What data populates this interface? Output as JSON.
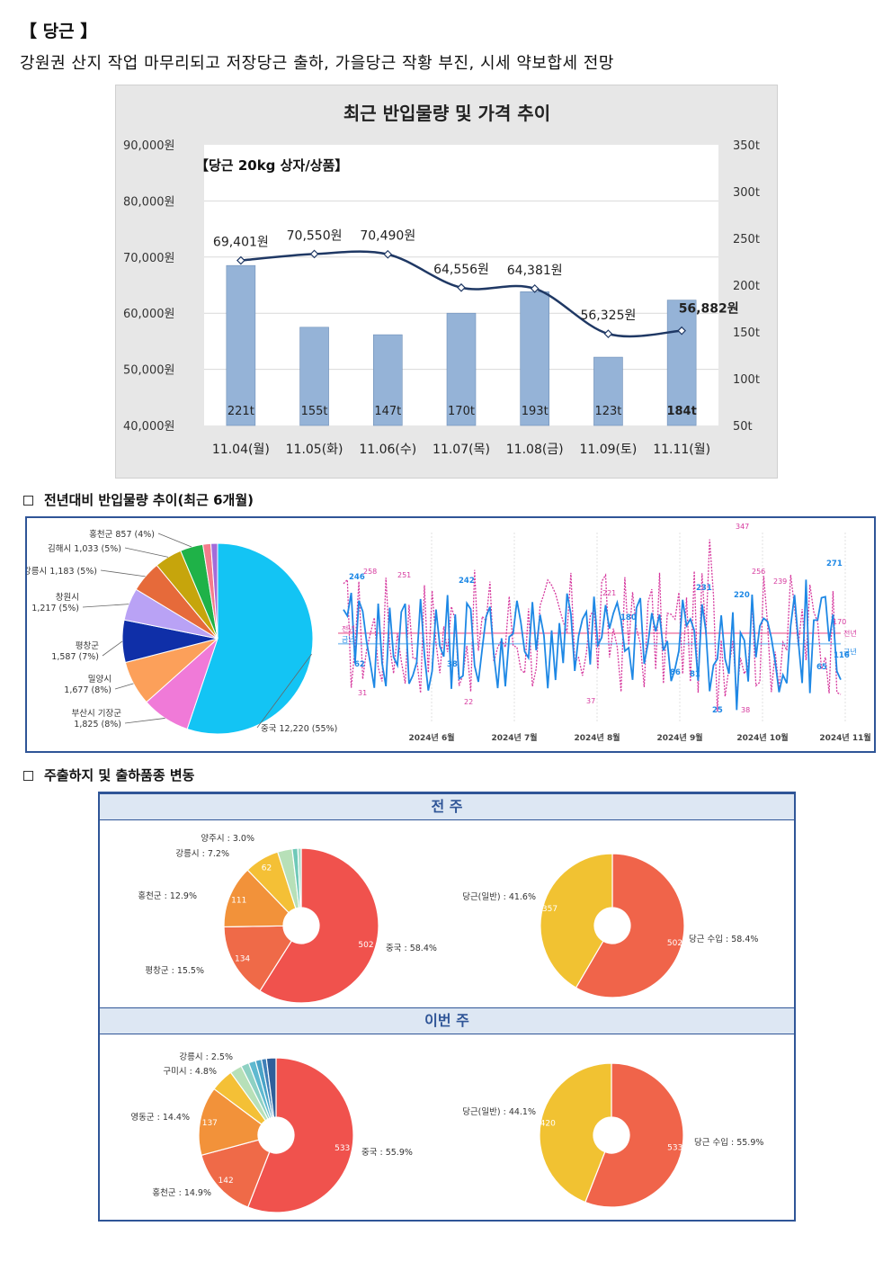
{
  "header": {
    "title": "【 당근 】",
    "summary": "강원권 산지 작업 마무리되고 저장당근 출하, 가을당근 작황 부진, 시세 약보합세 전망"
  },
  "sections": {
    "yoy": "전년대비 반입물량 추이(최근 6개월)",
    "origin": "주출하지 및 출하품종 변동"
  },
  "chart_data": [
    {
      "type": "bar+line",
      "title": "최근 반입물량 및 가격 추이",
      "subtitle": "【당근 20kg 상자/상품】",
      "categories": [
        "11.04(월)",
        "11.05(화)",
        "11.06(수)",
        "11.07(목)",
        "11.08(금)",
        "11.09(토)",
        "11.11(월)"
      ],
      "series": [
        {
          "type": "bar",
          "axis": "right",
          "values": [
            221,
            155,
            147,
            170,
            193,
            123,
            184
          ],
          "labels": [
            "221t",
            "155t",
            "147t",
            "170t",
            "193t",
            "123t",
            "184t"
          ]
        },
        {
          "type": "line",
          "axis": "left",
          "values": [
            69401,
            70550,
            70490,
            64556,
            64381,
            56325,
            56882
          ],
          "labels": [
            "69,401원",
            "70,550원",
            "70,490원",
            "64,556원",
            "64,381원",
            "56,325원",
            "56,882원"
          ]
        }
      ],
      "left_axis": {
        "range": [
          40000,
          90000
        ],
        "ticks": [
          "40,000원",
          "50,000원",
          "60,000원",
          "70,000원",
          "80,000원",
          "90,000원"
        ]
      },
      "right_axis": {
        "range": [
          50,
          350
        ],
        "ticks": [
          "50t",
          "100t",
          "150t",
          "200t",
          "250t",
          "300t",
          "350t"
        ]
      },
      "bar_color": "#95b3d7",
      "line_color": "#1f3864"
    },
    {
      "type": "pie",
      "slices": [
        {
          "label": "중국 12,220 (55%)",
          "value": 12220,
          "color": "#13c4f4"
        },
        {
          "label": "부산시 기장군 1,825 (8%)",
          "value": 1825,
          "color": "#f07ad8"
        },
        {
          "label": "밀양시 1,677 (8%)",
          "value": 1677,
          "color": "#fca05a"
        },
        {
          "label": "평창군 1,587 (7%)",
          "value": 1587,
          "color": "#0f2fa8"
        },
        {
          "label": "창원시 1,217 (5%)",
          "value": 1217,
          "color": "#b9a2f5"
        },
        {
          "label": "강릉시 1,183 (5%)",
          "value": 1183,
          "color": "#e66a3a"
        },
        {
          "label": "김해시 1,033 (5%)",
          "value": 1033,
          "color": "#c6a50c"
        },
        {
          "label": "홍천군 857 (4%)",
          "value": 857,
          "color": "#1fb248"
        },
        {
          "label": "",
          "value": 300,
          "color": "#f47c8c"
        },
        {
          "label": "",
          "value": 250,
          "color": "#a36cd9"
        }
      ]
    },
    {
      "type": "line",
      "x_ticks": [
        "2024년 6월",
        "2024년 7월",
        "2024년 8월",
        "2024년 9월",
        "2024년 10월",
        "2024년 11월"
      ],
      "series": [
        {
          "name": "전년",
          "color": "#d6399e",
          "avg": 170
        },
        {
          "name": "금년",
          "color": "#1e88e5",
          "avg": 150
        }
      ],
      "left_labels": [
        "전년",
        "금년"
      ],
      "cur_labels": [
        "246",
        "242",
        "231",
        "220",
        "180",
        "271",
        "116",
        "86",
        "81",
        "25",
        "62",
        "38",
        "65"
      ],
      "prev_labels": [
        "258",
        "251",
        "221",
        "347",
        "256",
        "239",
        "170",
        "22",
        "37",
        "38",
        "31"
      ]
    },
    {
      "type": "donut",
      "group": "전 주",
      "slices": [
        {
          "label": "중국 : 58.4%",
          "value": 502,
          "color": "#f0524d"
        },
        {
          "label": "평창군 : 15.5%",
          "value": 134,
          "color": "#ef6a48"
        },
        {
          "label": "홍천군 : 12.9%",
          "value": 111,
          "color": "#f2923a"
        },
        {
          "label": "강릉시 : 7.2%",
          "value": 62,
          "color": "#f4c036"
        },
        {
          "label": "양주시 : 3.0%",
          "value": 26,
          "color": "#b7e0b8"
        },
        {
          "label": "",
          "value": 10,
          "color": "#6fc9b8"
        },
        {
          "label": "",
          "value": 6,
          "color": "#a8dcc8"
        }
      ]
    },
    {
      "type": "donut",
      "group": "전 주",
      "slices": [
        {
          "label": "당근 수입 : 58.4%",
          "value": 502,
          "color": "#f0644a"
        },
        {
          "label": "당근(일반) : 41.6%",
          "value": 357,
          "color": "#f1c232"
        }
      ]
    },
    {
      "type": "donut",
      "group": "이번 주",
      "slices": [
        {
          "label": "중국 : 55.9%",
          "value": 533,
          "color": "#f0524d"
        },
        {
          "label": "홍천군 : 14.9%",
          "value": 142,
          "color": "#ef6a48"
        },
        {
          "label": "영동군 : 14.4%",
          "value": 137,
          "color": "#f2923a"
        },
        {
          "label": "구미시 : 4.8%",
          "value": 46,
          "color": "#f4c036"
        },
        {
          "label": "강릉시 : 2.5%",
          "value": 24,
          "color": "#b7e0b8"
        },
        {
          "label": "",
          "value": 16,
          "color": "#8ed1c3"
        },
        {
          "label": "",
          "value": 14,
          "color": "#5fb9d0"
        },
        {
          "label": "",
          "value": 12,
          "color": "#4aa3c7"
        },
        {
          "label": "",
          "value": 10,
          "color": "#3f7fb8"
        },
        {
          "label": "",
          "value": 19,
          "color": "#2f5f9a"
        }
      ]
    },
    {
      "type": "donut",
      "group": "이번 주",
      "slices": [
        {
          "label": "당근 수입 : 55.9%",
          "value": 533,
          "color": "#f0644a"
        },
        {
          "label": "당근(일반) : 44.1%",
          "value": 420,
          "color": "#f1c232"
        }
      ]
    }
  ]
}
